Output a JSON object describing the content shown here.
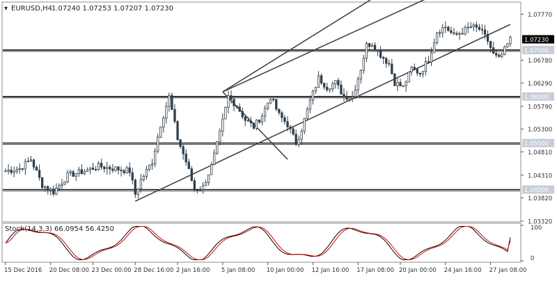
{
  "chart_data": {
    "type": "candlestick",
    "symbol": "EURUSD,H4",
    "ohlc_text": "1.07240 1.07253 1.07207 1.07230",
    "ylim": [
      1.0332,
      1.08
    ],
    "yticks": [
      "1.07770",
      "1.06780",
      "1.06290",
      "1.05790",
      "1.05300",
      "1.04810",
      "1.04310",
      "1.03820",
      "1.03320"
    ],
    "price_marker": {
      "label": "1.07230",
      "value": 1.0723
    },
    "hlines": [
      {
        "label": "1.07000",
        "value": 1.07
      },
      {
        "label": "1.06000",
        "value": 1.06
      },
      {
        "label": "1.05000",
        "value": 1.05
      },
      {
        "label": "1.04000",
        "value": 1.04
      }
    ],
    "bar_count": 180,
    "xticks": [
      {
        "label": "15 Dec 2016",
        "bar": 0
      },
      {
        "label": "20 Dec 08:00",
        "bar": 16
      },
      {
        "label": "23 Dec 00:00",
        "bar": 31
      },
      {
        "label": "28 Dec 16:00",
        "bar": 46
      },
      {
        "label": "2 Jan 16:00",
        "bar": 61
      },
      {
        "label": "5 Jan 08:00",
        "bar": 77
      },
      {
        "label": "10 Jan 00:00",
        "bar": 93
      },
      {
        "label": "12 Jan 16:00",
        "bar": 109
      },
      {
        "label": "17 Jan 08:00",
        "bar": 125
      },
      {
        "label": "20 Jan 00:00",
        "bar": 140
      },
      {
        "label": "24 Jan 16:00",
        "bar": 156
      },
      {
        "label": "27 Jan 08:00",
        "bar": 172
      }
    ],
    "anchors": [
      [
        0,
        1.044
      ],
      [
        5,
        1.0445
      ],
      [
        9,
        1.0465
      ],
      [
        13,
        1.041
      ],
      [
        17,
        1.0395
      ],
      [
        22,
        1.043
      ],
      [
        28,
        1.044
      ],
      [
        33,
        1.045
      ],
      [
        39,
        1.0445
      ],
      [
        44,
        1.044
      ],
      [
        46,
        1.039
      ],
      [
        48,
        1.042
      ],
      [
        52,
        1.046
      ],
      [
        55,
        1.054
      ],
      [
        58,
        1.06
      ],
      [
        61,
        1.051
      ],
      [
        64,
        1.046
      ],
      [
        67,
        1.04
      ],
      [
        70,
        1.0405
      ],
      [
        73,
        1.045
      ],
      [
        76,
        1.052
      ],
      [
        79,
        1.06
      ],
      [
        82,
        1.058
      ],
      [
        85,
        1.055
      ],
      [
        88,
        1.0535
      ],
      [
        91,
        1.056
      ],
      [
        94,
        1.06
      ],
      [
        97,
        1.056
      ],
      [
        100,
        1.054
      ],
      [
        103,
        1.05
      ],
      [
        105,
        1.053
      ],
      [
        108,
        1.059
      ],
      [
        111,
        1.064
      ],
      [
        114,
        1.062
      ],
      [
        117,
        1.063
      ],
      [
        120,
        1.06
      ],
      [
        123,
        1.06
      ],
      [
        126,
        1.066
      ],
      [
        128,
        1.071
      ],
      [
        130,
        1.0715
      ],
      [
        133,
        1.069
      ],
      [
        136,
        1.067
      ],
      [
        138,
        1.063
      ],
      [
        141,
        1.062
      ],
      [
        144,
        1.066
      ],
      [
        147,
        1.065
      ],
      [
        150,
        1.068
      ],
      [
        153,
        1.074
      ],
      [
        156,
        1.075
      ],
      [
        159,
        1.073
      ],
      [
        162,
        1.074
      ],
      [
        165,
        1.075
      ],
      [
        168,
        1.0745
      ],
      [
        171,
        1.072
      ],
      [
        173,
        1.069
      ],
      [
        175,
        1.068
      ],
      [
        177,
        1.07
      ],
      [
        179,
        1.0723
      ]
    ],
    "stochastic": {
      "label": "Stoch(14,3,3) 66.0954 56.4250",
      "k": 66.0954,
      "d": 56.425,
      "ylim": [
        0,
        100
      ],
      "levels": [
        {
          "label": "100",
          "value": 100
        },
        {
          "label": "0",
          "value": 0
        }
      ],
      "k_color": "#000000",
      "d_color": "#dd0000"
    },
    "colors": {
      "bull": "#ffffff",
      "bear": "#2f3e4c",
      "outline": "#2f3e4c",
      "level_tag": "#c6cdd8",
      "price_tag": "#000000"
    }
  }
}
